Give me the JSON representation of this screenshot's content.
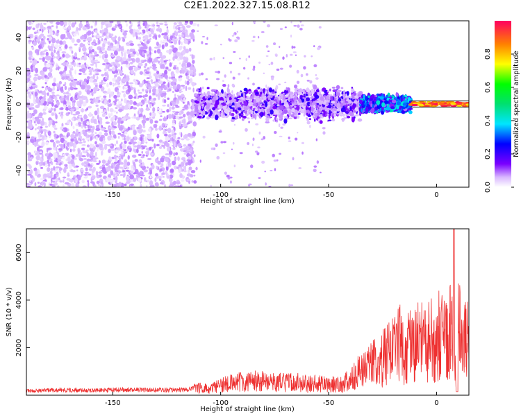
{
  "title": "C2E1.2022.327.15.08.R12",
  "chart_data": [
    {
      "type": "heatmap",
      "xlabel": "Height of straight line (km)",
      "ylabel": "Frequency (Hz)",
      "xlim": [
        -190,
        15
      ],
      "ylim": [
        -50,
        50
      ],
      "x_ticks": [
        -150,
        -100,
        -50,
        0
      ],
      "y_ticks": [
        -40,
        -20,
        0,
        20,
        40
      ],
      "x_tick_labels": [
        "-150",
        "-100",
        "-50",
        "0"
      ],
      "y_tick_labels": [
        "-40",
        "-20",
        "0",
        "20",
        "40"
      ],
      "colorbar": {
        "label": "Normalized spectral amplitude",
        "range": [
          0,
          1
        ],
        "ticks": [
          0,
          0.2,
          0.4,
          0.6,
          0.8
        ],
        "tick_labels": [
          "0.0",
          "0.2",
          "0.4",
          "0.6",
          "0.8"
        ],
        "colormap": [
          "#ffffff",
          "#6a00ff",
          "#0000ff",
          "#00e5ff",
          "#00ff00",
          "#ffff00",
          "#ff8000",
          "#ff0060"
        ]
      },
      "grid": false,
      "regions": [
        {
          "x_range": [
            -190,
            -112
          ],
          "freq_range": [
            -50,
            50
          ],
          "amplitude": 0.05
        },
        {
          "x_range": [
            -112,
            -35
          ],
          "freq_range": [
            -12,
            12
          ],
          "amplitude": 0.15
        },
        {
          "x_range": [
            -35,
            -12
          ],
          "freq_range": [
            -6,
            6
          ],
          "amplitude": 0.3
        },
        {
          "x_range": [
            -12,
            15
          ],
          "freq_range": [
            -2,
            2
          ],
          "amplitude": 0.85
        }
      ]
    },
    {
      "type": "line",
      "xlabel": "Height of straight line (km)",
      "ylabel": "SNR (10 * v/v)",
      "xlim": [
        -190,
        15
      ],
      "ylim": [
        0,
        7000
      ],
      "x_ticks": [
        -150,
        -100,
        -50,
        0
      ],
      "y_ticks": [
        2000,
        4000,
        6000
      ],
      "x_tick_labels": [
        "-150",
        "-100",
        "-50",
        "0"
      ],
      "y_tick_labels": [
        "2000",
        "4000",
        "6000"
      ],
      "color": "#ee3030",
      "grid": false,
      "series": [
        {
          "x": [
            -190,
            -175,
            -160,
            -145,
            -130,
            -115,
            -110,
            -105,
            -100,
            -95,
            -90,
            -85,
            -80,
            -75,
            -70,
            -65,
            -60,
            -55,
            -50,
            -45,
            -40,
            -35,
            -30,
            -25,
            -20,
            -17,
            -15,
            -12,
            -10,
            -7,
            -5,
            -2,
            0,
            3,
            5,
            7,
            8,
            9,
            10,
            12,
            15
          ],
          "y": [
            200,
            250,
            220,
            260,
            240,
            250,
            500,
            350,
            600,
            700,
            800,
            850,
            900,
            800,
            750,
            800,
            650,
            700,
            600,
            700,
            900,
            1500,
            1800,
            2200,
            2700,
            3500,
            2600,
            2900,
            3000,
            3300,
            3200,
            3400,
            3600,
            3500,
            3700,
            3800,
            6900,
            300,
            3900,
            3500,
            4200
          ]
        }
      ]
    }
  ]
}
